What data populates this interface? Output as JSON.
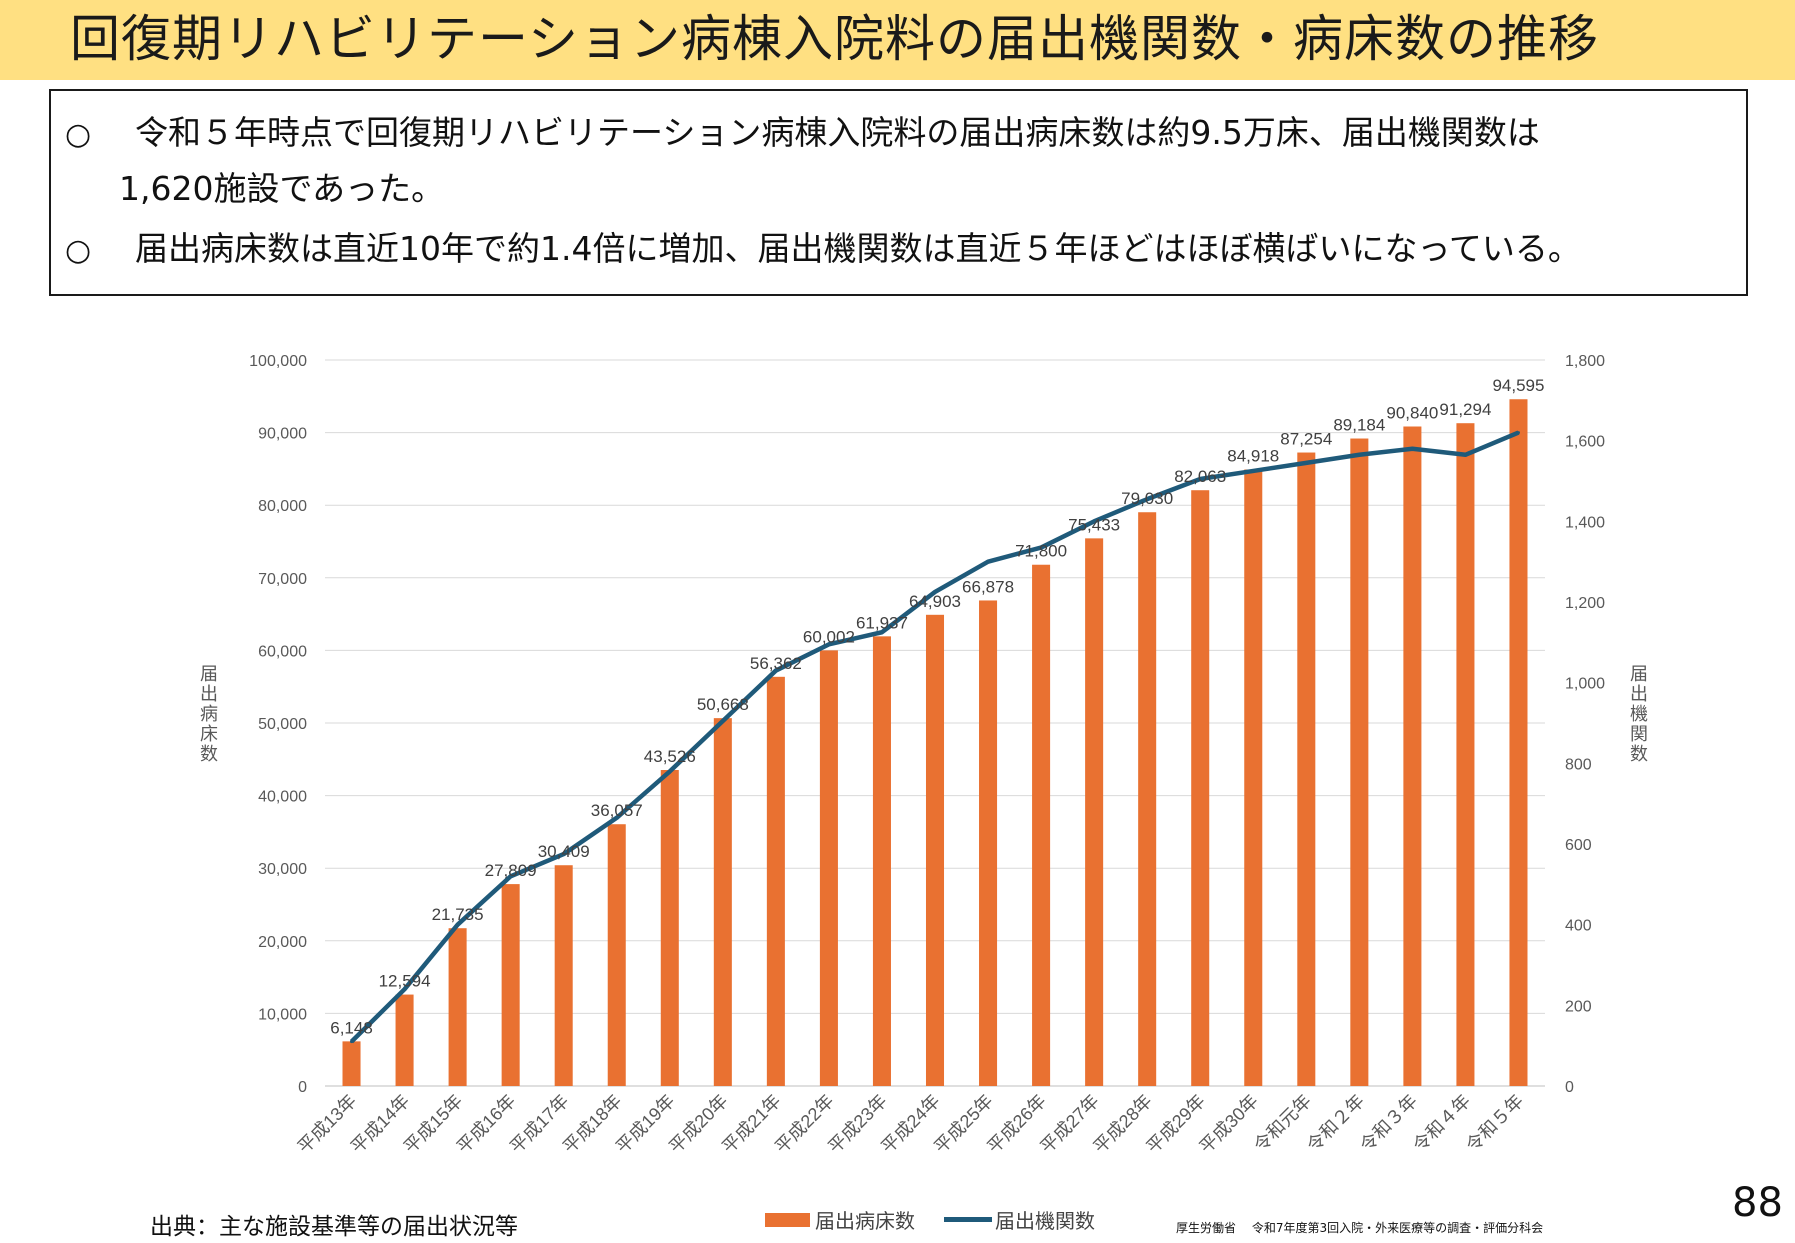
{
  "title": "回復期リハビリテーション病棟入院料の届出機関数・病床数の推移",
  "summary": [
    {
      "bullet": "○",
      "lines": [
        "令和５年時点で回復期リハビリテーション病棟入院料の届出病床数は約9.5万床、届出機関数は",
        "1,620施設であった。"
      ]
    },
    {
      "bullet": "○",
      "lines": [
        "届出病床数は直近10年で約1.4倍に増加、届出機関数は直近５年ほどはほぼ横ばいになっている。"
      ]
    }
  ],
  "page_number": "88",
  "source": "出典：主な施設基準等の届出状況等",
  "credit": "厚生労働省　 令和7年度第3回入院・外来医療等の調査・評価分科会",
  "colors": {
    "bar": "#e97131",
    "line": "#1f5a7a",
    "title_bg": "#ffe082"
  },
  "chart_data": {
    "type": "bar",
    "categories": [
      "平成13年",
      "平成14年",
      "平成15年",
      "平成16年",
      "平成17年",
      "平成18年",
      "平成19年",
      "平成20年",
      "平成21年",
      "平成22年",
      "平成23年",
      "平成24年",
      "平成25年",
      "平成26年",
      "平成27年",
      "平成28年",
      "平成29年",
      "平成30年",
      "令和元年",
      "令和２年",
      "令和３年",
      "令和４年",
      "令和５年"
    ],
    "series": [
      {
        "name": "届出病床数",
        "type": "bar",
        "axis": "left",
        "values": [
          6148,
          12594,
          21735,
          27809,
          30409,
          36057,
          43526,
          50668,
          56362,
          60002,
          61937,
          64903,
          66878,
          71800,
          75433,
          79030,
          82063,
          84918,
          87254,
          89184,
          90840,
          91294,
          94595
        ]
      },
      {
        "name": "届出機関数",
        "type": "line",
        "axis": "right",
        "values": [
          110,
          240,
          400,
          520,
          575,
          665,
          780,
          905,
          1030,
          1095,
          1125,
          1225,
          1300,
          1335,
          1400,
          1455,
          1505,
          1525,
          1545,
          1565,
          1580,
          1565,
          1620
        ]
      }
    ],
    "y_left": {
      "label": "届出病床数",
      "min": 0,
      "max": 100000,
      "ticks": [
        "0",
        "10,000",
        "20,000",
        "30,000",
        "40,000",
        "50,000",
        "60,000",
        "70,000",
        "80,000",
        "90,000",
        "100,000"
      ]
    },
    "y_right": {
      "label": "届出機関数",
      "min": 0,
      "max": 1800,
      "ticks": [
        "0",
        "200",
        "400",
        "600",
        "800",
        "1,000",
        "1,200",
        "1,400",
        "1,600",
        "1,800"
      ]
    },
    "data_labels": [
      "6,148",
      "12,594",
      "21,735",
      "27,809",
      "30,409",
      "36,057",
      "43,526",
      "50,668",
      "56,362",
      "60,002",
      "61,937",
      "64,903",
      "66,878",
      "71,800",
      "75,433",
      "79,030",
      "82,063",
      "84,918",
      "87,254",
      "89,184",
      "90,840",
      "91,294",
      "94,595"
    ],
    "grid": true,
    "legend_position": "bottom"
  }
}
